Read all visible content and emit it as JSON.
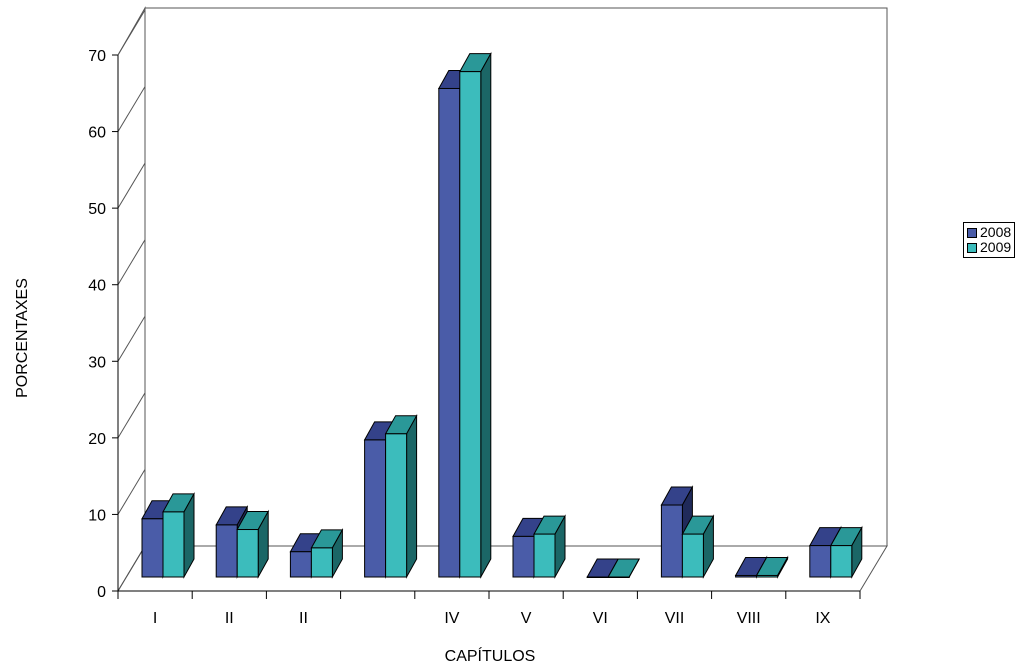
{
  "chart_data": {
    "type": "bar",
    "title": "",
    "xlabel": "CAPÍTULOS",
    "ylabel": "PORCENTAXES",
    "ylim": [
      0,
      70
    ],
    "yticks": [
      0,
      10,
      20,
      30,
      40,
      50,
      60,
      70
    ],
    "categories": [
      "I",
      "II",
      "II",
      "",
      "IV",
      "V",
      "VI",
      "VII",
      "VIII",
      "IX"
    ],
    "series": [
      {
        "name": "2008",
        "values": [
          7.6,
          6.8,
          3.3,
          17.9,
          63.8,
          5.3,
          0,
          9.4,
          0.2,
          4.1
        ]
      },
      {
        "name": "2009",
        "values": [
          8.5,
          6.2,
          3.8,
          18.7,
          66.0,
          5.6,
          0,
          5.6,
          0.2,
          4.1
        ]
      }
    ],
    "grid": false,
    "legend_position": "right",
    "colors": {
      "2008": {
        "front": "#4a5ca8",
        "top": "#34428a",
        "side": "#202a5a"
      },
      "2009": {
        "front": "#3cbcbc",
        "top": "#2a9898",
        "side": "#1b6666"
      }
    }
  }
}
